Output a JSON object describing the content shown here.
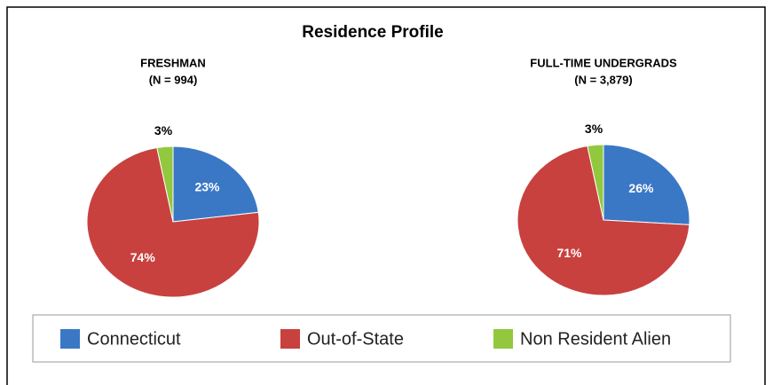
{
  "title": "Residence Profile",
  "chart_data": [
    {
      "type": "pie",
      "title": "FRESHMAN",
      "subtitle": "(N = 994)",
      "categories": [
        "Connecticut",
        "Out-of-State",
        "Non Resident Alien"
      ],
      "values": [
        23,
        74,
        3
      ],
      "value_labels": [
        "23%",
        "74%",
        "3%"
      ],
      "colors": [
        "#3a78c6",
        "#c8413e",
        "#92c83e"
      ]
    },
    {
      "type": "pie",
      "title": "FULL-TIME UNDERGRADS",
      "subtitle": "(N = 3,879)",
      "categories": [
        "Connecticut",
        "Out-of-State",
        "Non Resident Alien"
      ],
      "values": [
        26,
        71,
        3
      ],
      "value_labels": [
        "26%",
        "71%",
        "3%"
      ],
      "colors": [
        "#3a78c6",
        "#c8413e",
        "#92c83e"
      ]
    }
  ]
}
